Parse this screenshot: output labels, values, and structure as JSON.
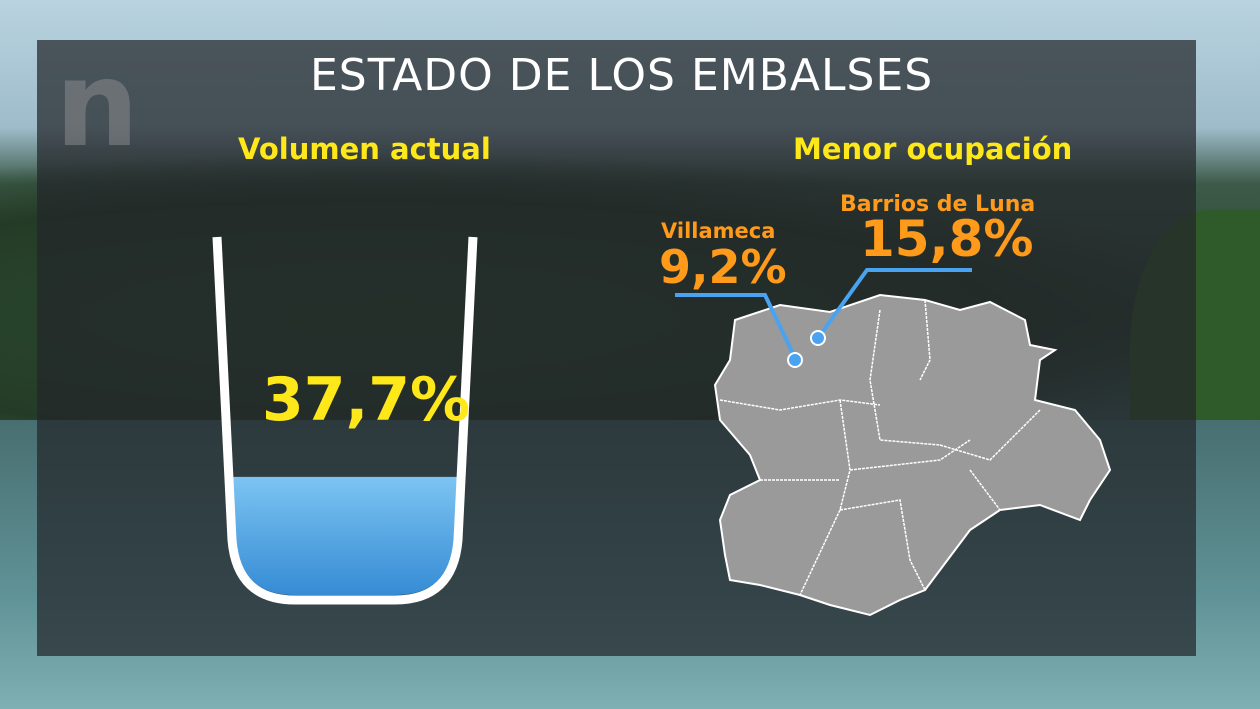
{
  "logo": "n",
  "title": "ESTADO DE LOS EMBALSES",
  "left": {
    "subtitle": "Volumen actual",
    "value_label": "37,7%",
    "fill_percent": 37.7,
    "water_color": "#3a8fd8"
  },
  "right": {
    "subtitle": "Menor ocupación",
    "reservoirs": [
      {
        "name": "Villameca",
        "value": "9,2%"
      },
      {
        "name": "Barrios de Luna",
        "value": "15,8%"
      }
    ],
    "accent": "#ff9a1a",
    "line_color": "#4aa3f0",
    "map_color": "#9a9a9a"
  }
}
